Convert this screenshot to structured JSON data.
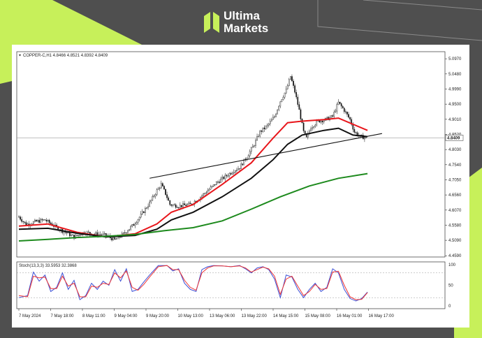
{
  "brand": {
    "line1": "Ultima",
    "line2": "Markets",
    "accent_color": "#c7f05a",
    "logo_icon": "ultima-markets-logo-icon"
  },
  "colors": {
    "accent": "#c7f05a",
    "background": "#4f4f4f",
    "ma_fast": "#e8161b",
    "ma_mid": "#111111",
    "ma_slow": "#1d8a1d",
    "stoch_main": "#3b4fd6",
    "stoch_signal": "#ee3434",
    "candle": "#111111"
  },
  "chart_data": [
    {
      "type": "candlestick",
      "title": "COPPER-C,H1  4.8466 4.8521 4.8392 4.8409",
      "last_price_label": "4.8409",
      "y_ticks": [
        "5.0970",
        "5.0480",
        "4.9990",
        "4.9500",
        "4.9010",
        "4.8520",
        "4.8030",
        "4.7540",
        "4.7050",
        "4.6560",
        "4.6070",
        "4.5580",
        "4.5090",
        "4.4590"
      ],
      "ylim": [
        4.455,
        5.12
      ],
      "x_ticks": [
        "7 May 2024",
        "7 May 18:00",
        "8 May 11:00",
        "9 May 04:00",
        "9 May 20:00",
        "10 May 13:00",
        "13 May 06:00",
        "13 May 22:00",
        "14 May 15:00",
        "15 May 08:00",
        "16 May 01:00",
        "16 May 17:00"
      ],
      "bar_count": 240,
      "price_path": [
        [
          0,
          4.585
        ],
        [
          5,
          4.56
        ],
        [
          12,
          4.57
        ],
        [
          18,
          4.575
        ],
        [
          26,
          4.55
        ],
        [
          32,
          4.535
        ],
        [
          38,
          4.52
        ],
        [
          45,
          4.535
        ],
        [
          52,
          4.53
        ],
        [
          60,
          4.525
        ],
        [
          66,
          4.51
        ],
        [
          72,
          4.53
        ],
        [
          79,
          4.56
        ],
        [
          84,
          4.59
        ],
        [
          90,
          4.63
        ],
        [
          95,
          4.67
        ],
        [
          98,
          4.69
        ],
        [
          101,
          4.66
        ],
        [
          104,
          4.625
        ],
        [
          110,
          4.62
        ],
        [
          118,
          4.625
        ],
        [
          124,
          4.645
        ],
        [
          130,
          4.67
        ],
        [
          136,
          4.695
        ],
        [
          142,
          4.715
        ],
        [
          148,
          4.735
        ],
        [
          152,
          4.745
        ],
        [
          157,
          4.78
        ],
        [
          162,
          4.82
        ],
        [
          166,
          4.86
        ],
        [
          171,
          4.88
        ],
        [
          176,
          4.91
        ],
        [
          180,
          4.96
        ],
        [
          184,
          4.995
        ],
        [
          187,
          5.04
        ],
        [
          190,
          4.99
        ],
        [
          193,
          4.93
        ],
        [
          196,
          4.86
        ],
        [
          198,
          4.84
        ],
        [
          201,
          4.875
        ],
        [
          206,
          4.895
        ],
        [
          211,
          4.9
        ],
        [
          216,
          4.91
        ],
        [
          220,
          4.955
        ],
        [
          224,
          4.93
        ],
        [
          228,
          4.9
        ],
        [
          231,
          4.86
        ],
        [
          235,
          4.845
        ],
        [
          240,
          4.84
        ]
      ],
      "channels": [
        {
          "name": "",
          "color": "#e8161b",
          "points": [
            [
              0,
              4.555
            ],
            [
              20,
              4.562
            ],
            [
              40,
              4.535
            ],
            [
              60,
              4.52
            ],
            [
              80,
              4.53
            ],
            [
              95,
              4.562
            ],
            [
              105,
              4.6
            ],
            [
              120,
              4.625
            ],
            [
              140,
              4.69
            ],
            [
              160,
              4.76
            ],
            [
              175,
              4.84
            ],
            [
              185,
              4.89
            ],
            [
              195,
              4.895
            ],
            [
              210,
              4.9
            ],
            [
              220,
              4.905
            ],
            [
              230,
              4.885
            ],
            [
              240,
              4.865
            ]
          ]
        },
        {
          "name": "",
          "color": "#111111",
          "points": [
            [
              0,
              4.545
            ],
            [
              20,
              4.548
            ],
            [
              40,
              4.532
            ],
            [
              60,
              4.52
            ],
            [
              80,
              4.525
            ],
            [
              95,
              4.545
            ],
            [
              105,
              4.575
            ],
            [
              120,
              4.6
            ],
            [
              140,
              4.65
            ],
            [
              160,
              4.71
            ],
            [
              175,
              4.77
            ],
            [
              185,
              4.82
            ],
            [
              195,
              4.85
            ],
            [
              210,
              4.865
            ],
            [
              220,
              4.872
            ],
            [
              230,
              4.85
            ],
            [
              240,
              4.845
            ]
          ]
        },
        {
          "name": "",
          "color": "#1d8a1d",
          "points": [
            [
              0,
              4.507
            ],
            [
              20,
              4.512
            ],
            [
              40,
              4.518
            ],
            [
              60,
              4.522
            ],
            [
              80,
              4.528
            ],
            [
              100,
              4.54
            ],
            [
              120,
              4.55
            ],
            [
              140,
              4.572
            ],
            [
              160,
              4.61
            ],
            [
              180,
              4.65
            ],
            [
              200,
              4.685
            ],
            [
              220,
              4.71
            ],
            [
              240,
              4.725
            ]
          ]
        }
      ],
      "trendline": [
        [
          90,
          4.71
        ],
        [
          250,
          4.855
        ]
      ],
      "horizontal_line": 4.8409
    },
    {
      "type": "line",
      "title": "Stoch(13,3,3) 33.5953 32.3868",
      "y_ticks": [
        "100",
        "50",
        "0"
      ],
      "ylim": [
        0,
        100
      ],
      "levels": [
        80,
        20
      ],
      "series": [
        {
          "name": "",
          "color": "#3b4fd6",
          "points": [
            [
              0,
              20
            ],
            [
              6,
              25
            ],
            [
              10,
              82
            ],
            [
              14,
              60
            ],
            [
              18,
              75
            ],
            [
              22,
              35
            ],
            [
              26,
              45
            ],
            [
              30,
              80
            ],
            [
              34,
              40
            ],
            [
              38,
              62
            ],
            [
              42,
              15
            ],
            [
              46,
              25
            ],
            [
              50,
              55
            ],
            [
              54,
              40
            ],
            [
              58,
              60
            ],
            [
              62,
              50
            ],
            [
              66,
              88
            ],
            [
              70,
              60
            ],
            [
              74,
              90
            ],
            [
              78,
              35
            ],
            [
              82,
              40
            ],
            [
              86,
              58
            ],
            [
              90,
              75
            ],
            [
              96,
              98
            ],
            [
              102,
              98
            ],
            [
              106,
              85
            ],
            [
              110,
              90
            ],
            [
              114,
              55
            ],
            [
              118,
              40
            ],
            [
              122,
              35
            ],
            [
              126,
              88
            ],
            [
              130,
              95
            ],
            [
              134,
              98
            ],
            [
              140,
              97
            ],
            [
              146,
              95
            ],
            [
              152,
              98
            ],
            [
              156,
              90
            ],
            [
              160,
              80
            ],
            [
              164,
              92
            ],
            [
              168,
              95
            ],
            [
              172,
              88
            ],
            [
              176,
              65
            ],
            [
              180,
              20
            ],
            [
              184,
              75
            ],
            [
              188,
              70
            ],
            [
              192,
              40
            ],
            [
              196,
              20
            ],
            [
              200,
              40
            ],
            [
              204,
              55
            ],
            [
              208,
              35
            ],
            [
              212,
              45
            ],
            [
              216,
              90
            ],
            [
              220,
              80
            ],
            [
              224,
              40
            ],
            [
              228,
              18
            ],
            [
              232,
              12
            ],
            [
              236,
              18
            ],
            [
              240,
              33.6
            ]
          ]
        },
        {
          "name": "",
          "color": "#ee3434",
          "points": [
            [
              0,
              25
            ],
            [
              6,
              22
            ],
            [
              10,
              72
            ],
            [
              14,
              68
            ],
            [
              18,
              70
            ],
            [
              22,
              42
            ],
            [
              26,
              42
            ],
            [
              30,
              72
            ],
            [
              34,
              48
            ],
            [
              38,
              55
            ],
            [
              42,
              22
            ],
            [
              46,
              22
            ],
            [
              50,
              48
            ],
            [
              54,
              45
            ],
            [
              58,
              55
            ],
            [
              62,
              52
            ],
            [
              66,
              80
            ],
            [
              70,
              68
            ],
            [
              74,
              85
            ],
            [
              78,
              45
            ],
            [
              82,
              38
            ],
            [
              86,
              52
            ],
            [
              90,
              70
            ],
            [
              96,
              95
            ],
            [
              102,
              98
            ],
            [
              106,
              88
            ],
            [
              110,
              88
            ],
            [
              114,
              62
            ],
            [
              118,
              45
            ],
            [
              122,
              38
            ],
            [
              126,
              80
            ],
            [
              130,
              92
            ],
            [
              134,
              97
            ],
            [
              140,
              97
            ],
            [
              146,
              95
            ],
            [
              152,
              97
            ],
            [
              156,
              92
            ],
            [
              160,
              82
            ],
            [
              164,
              88
            ],
            [
              168,
              94
            ],
            [
              172,
              90
            ],
            [
              176,
              72
            ],
            [
              180,
              28
            ],
            [
              184,
              65
            ],
            [
              188,
              72
            ],
            [
              192,
              48
            ],
            [
              196,
              25
            ],
            [
              200,
              35
            ],
            [
              204,
              52
            ],
            [
              208,
              40
            ],
            [
              212,
              42
            ],
            [
              216,
              82
            ],
            [
              220,
              84
            ],
            [
              224,
              50
            ],
            [
              228,
              22
            ],
            [
              232,
              15
            ],
            [
              236,
              16
            ],
            [
              240,
              32.4
            ]
          ]
        }
      ]
    }
  ]
}
